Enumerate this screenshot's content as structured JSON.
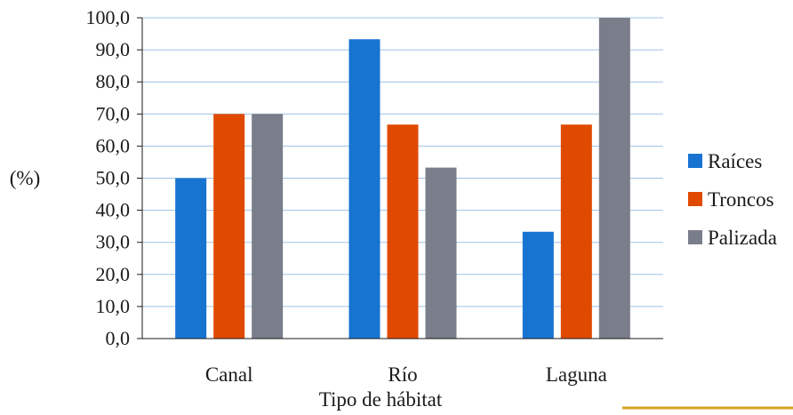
{
  "chart_data": {
    "type": "bar",
    "title": "",
    "xlabel": "Tipo de hábitat",
    "ylabel": "(%)",
    "categories": [
      "Canal",
      "Río",
      "Laguna"
    ],
    "series": [
      {
        "name": "Raíces",
        "color": "#1874d1",
        "values": [
          50.0,
          93.3,
          33.3
        ]
      },
      {
        "name": "Troncos",
        "color": "#e04a00",
        "values": [
          70.0,
          66.7,
          66.7
        ]
      },
      {
        "name": "Palizada",
        "color": "#7a7d8a",
        "values": [
          70.0,
          53.3,
          100.0
        ]
      }
    ],
    "ylim": [
      0,
      100
    ],
    "yticks": [
      "0,0",
      "10,0",
      "20,0",
      "30,0",
      "40,0",
      "50,0",
      "60,0",
      "70,0",
      "80,0",
      "90,0",
      "100,0"
    ],
    "grid": true,
    "legend_position": "right"
  },
  "colors": {
    "gridline": "#9fc3e6",
    "axis": "#1a1a1a",
    "corner_accent": "#d6a51e"
  }
}
